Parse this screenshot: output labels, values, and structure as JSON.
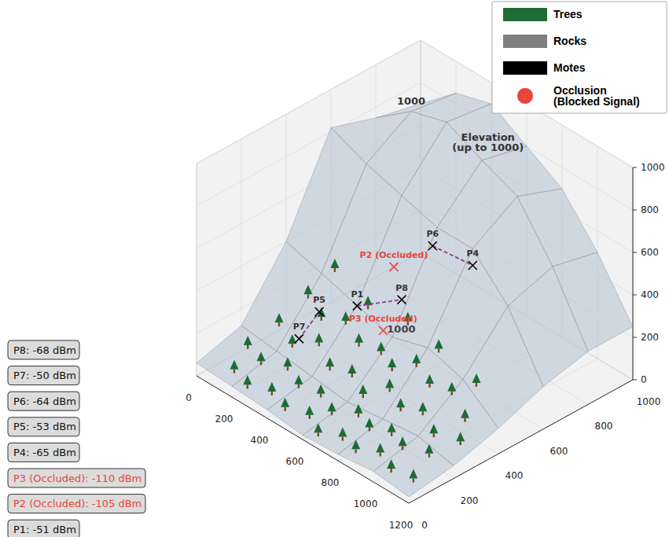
{
  "chart_data": {
    "type": "surface3d",
    "xlim": [
      0,
      1200
    ],
    "xticks": [
      0,
      200,
      400,
      600,
      800,
      1000,
      1200
    ],
    "ylim": [
      0,
      1000
    ],
    "yticks": [
      0,
      200,
      400,
      600,
      800,
      1000
    ],
    "zlim": [
      0,
      1000
    ],
    "zticks": [
      0,
      200,
      400,
      600,
      800,
      1000
    ],
    "grid": true,
    "legend": "upper right",
    "legend_items": [
      {
        "name": "Trees",
        "color": "#1e6b34",
        "marker": "square"
      },
      {
        "name": "Rocks",
        "color": "#808080",
        "marker": "square"
      },
      {
        "name": "Motes",
        "color": "#000000",
        "marker": "square"
      },
      {
        "name": "Occlusion (Blocked Signal)",
        "color": "#e8453c",
        "marker": "circle"
      }
    ],
    "elevation": {
      "x": [
        0,
        200,
        400,
        600,
        800,
        1000,
        1200
      ],
      "y": [
        0,
        200,
        400,
        600,
        800,
        1000
      ],
      "values": [
        [
          60,
          50,
          40,
          20,
          30,
          50,
          30
        ],
        [
          120,
          100,
          80,
          60,
          80,
          100,
          60
        ],
        [
          400,
          350,
          300,
          250,
          300,
          250,
          120
        ],
        [
          820,
          750,
          700,
          650,
          650,
          480,
          200
        ],
        [
          750,
          880,
          930,
          850,
          780,
          550,
          250
        ],
        [
          700,
          850,
          900,
          800,
          700,
          500,
          250
        ]
      ]
    },
    "trees": [
      [
        150,
        50
      ],
      [
        250,
        30
      ],
      [
        350,
        60
      ],
      [
        450,
        40
      ],
      [
        550,
        70
      ],
      [
        650,
        30
      ],
      [
        750,
        60
      ],
      [
        850,
        40
      ],
      [
        950,
        70
      ],
      [
        1050,
        40
      ],
      [
        1150,
        60
      ],
      [
        100,
        150
      ],
      [
        200,
        130
      ],
      [
        300,
        170
      ],
      [
        400,
        140
      ],
      [
        500,
        160
      ],
      [
        600,
        130
      ],
      [
        700,
        170
      ],
      [
        800,
        140
      ],
      [
        900,
        160
      ],
      [
        1000,
        130
      ],
      [
        1100,
        170
      ],
      [
        150,
        250
      ],
      [
        250,
        230
      ],
      [
        350,
        270
      ],
      [
        450,
        240
      ],
      [
        550,
        260
      ],
      [
        650,
        230
      ],
      [
        750,
        270
      ],
      [
        850,
        240
      ],
      [
        950,
        260
      ],
      [
        1050,
        230
      ],
      [
        1150,
        270
      ],
      [
        200,
        340
      ],
      [
        300,
        320
      ],
      [
        400,
        350
      ],
      [
        500,
        330
      ],
      [
        600,
        350
      ],
      [
        700,
        320
      ],
      [
        800,
        350
      ],
      [
        900,
        330
      ],
      [
        1000,
        350
      ],
      [
        1100,
        330
      ],
      [
        250,
        420
      ],
      [
        450,
        410
      ],
      [
        650,
        430
      ],
      [
        850,
        410
      ],
      [
        1050,
        420
      ]
    ],
    "points": [
      {
        "name": "P1",
        "label": "P1",
        "x": 300,
        "y": 480,
        "z": 200,
        "occluded": false
      },
      {
        "name": "P2",
        "label": "P2 (Occluded)",
        "x": 400,
        "y": 565,
        "z": 385,
        "occluded": true
      },
      {
        "name": "P3",
        "label": "P3 (Occluded)",
        "x": 700,
        "y": 280,
        "z": 400,
        "occluded": true
      },
      {
        "name": "P4",
        "label": "P4",
        "x": 700,
        "y": 680,
        "z": 475,
        "occluded": false
      },
      {
        "name": "P5",
        "label": "P5",
        "x": 200,
        "y": 390,
        "z": 175,
        "occluded": false
      },
      {
        "name": "P6",
        "label": "P6",
        "x": 600,
        "y": 580,
        "z": 575,
        "occluded": false
      },
      {
        "name": "P7",
        "label": "P7",
        "x": 200,
        "y": 300,
        "z": 100,
        "occluded": false
      },
      {
        "name": "P8",
        "label": "P8",
        "x": 400,
        "y": 600,
        "z": 210,
        "occluded": false
      }
    ],
    "links": [
      [
        "P7",
        "P5"
      ],
      [
        "P1",
        "P8"
      ],
      [
        "P6",
        "P4"
      ]
    ],
    "line_style": "dashed",
    "annotations": [
      {
        "text": "1000",
        "x": 200,
        "y": 800,
        "z": 930
      },
      {
        "text": "Elevation (up to 1000)",
        "x": 400,
        "y": 985,
        "z": 727
      },
      {
        "text": "1000",
        "x": 600,
        "y": 440,
        "z": 265
      }
    ],
    "signal_readings": [
      {
        "name": "P8",
        "value": -68,
        "label": "P8: -68 dBm",
        "occluded": false
      },
      {
        "name": "P7",
        "value": -50,
        "label": "P7: -50 dBm",
        "occluded": false
      },
      {
        "name": "P6",
        "value": -64,
        "label": "P6: -64 dBm",
        "occluded": false
      },
      {
        "name": "P5",
        "value": -53,
        "label": "P5: -53 dBm",
        "occluded": false
      },
      {
        "name": "P4",
        "value": -65,
        "label": "P4: -65 dBm",
        "occluded": false
      },
      {
        "name": "P3",
        "value": -110,
        "label": "P3 (Occluded): -110 dBm",
        "occluded": true
      },
      {
        "name": "P2",
        "value": -105,
        "label": "P2 (Occluded): -105 dBm",
        "occluded": true
      },
      {
        "name": "P1",
        "value": -51,
        "label": "P1: -51 dBm",
        "occluded": false
      }
    ]
  }
}
